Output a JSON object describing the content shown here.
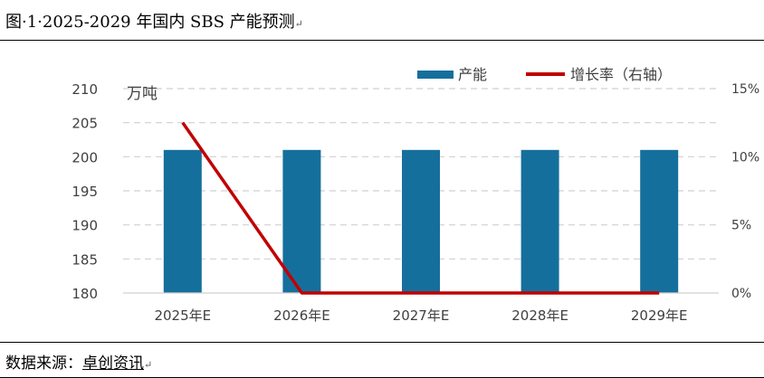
{
  "caption": {
    "prefix": "图·1·",
    "title": "2025-2029 年国内 SBS 产能预测",
    "mark": "↵"
  },
  "source": {
    "label": "数据来源：",
    "name": "卓创资讯",
    "mark": "↵"
  },
  "chart_data": {
    "type": "bar",
    "categories": [
      "2025年E",
      "2026年E",
      "2027年E",
      "2028年E",
      "2029年E"
    ],
    "unit_label": "万吨",
    "series": [
      {
        "name": "产能",
        "type": "bar",
        "axis": "left",
        "color": "#156f9c",
        "values": [
          201,
          201,
          201,
          201,
          201
        ]
      },
      {
        "name": "增长率（右轴）",
        "type": "line",
        "axis": "right",
        "color": "#c00000",
        "values": [
          12.5,
          0,
          0,
          0,
          0
        ]
      }
    ],
    "y_left": {
      "min": 180,
      "max": 210,
      "ticks": [
        "180",
        "185",
        "190",
        "195",
        "200",
        "205",
        "210"
      ]
    },
    "y_right": {
      "min": 0,
      "max": 15,
      "ticks": [
        "0%",
        "5%",
        "10%",
        "15%"
      ]
    },
    "grid": true,
    "legend_position": "top-right"
  }
}
